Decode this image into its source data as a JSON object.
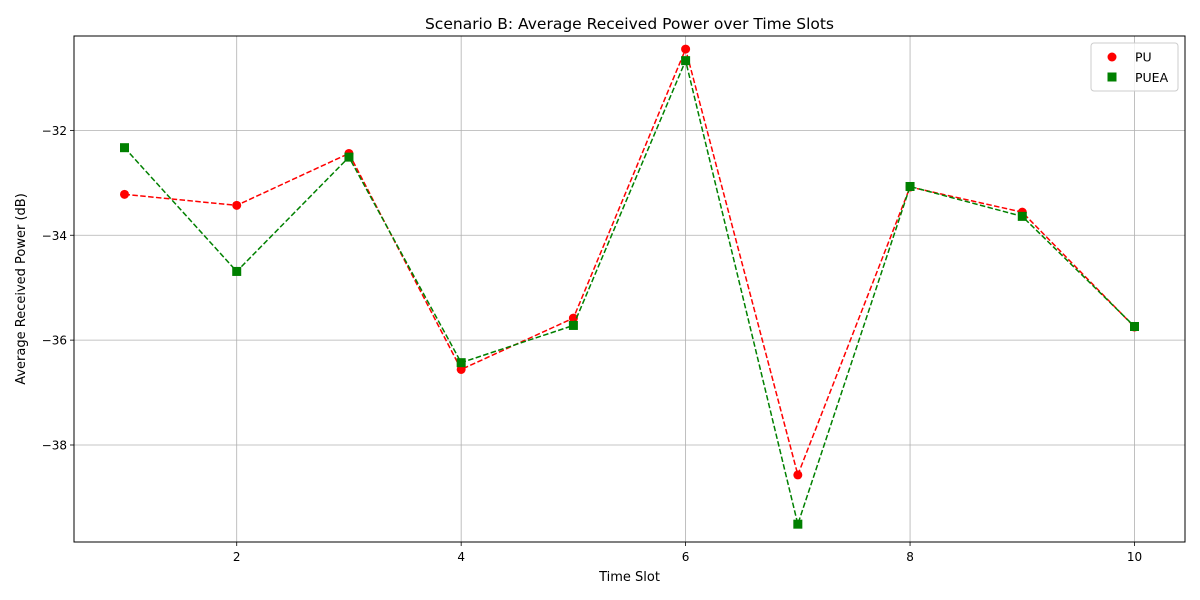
{
  "chart_data": {
    "type": "line",
    "title": "Scenario B: Average Received Power over Time Slots",
    "xlabel": "Time Slot",
    "ylabel": "Average Received Power (dB)",
    "xlim": [
      0.55,
      10.45
    ],
    "ylim": [
      -39.85,
      -30.2
    ],
    "xticks": [
      2,
      4,
      6,
      8,
      10
    ],
    "yticks": [
      -38,
      -36,
      -34,
      -32
    ],
    "xtick_labels": [
      "2",
      "4",
      "6",
      "8",
      "10"
    ],
    "ytick_labels": [
      "−38",
      "−36",
      "−34",
      "−32"
    ],
    "grid": true,
    "legend_position": "top-right",
    "x": [
      1,
      2,
      3,
      4,
      5,
      6,
      7,
      8,
      9,
      10
    ],
    "series": [
      {
        "name": "PU",
        "color": "#ff0000",
        "marker": "circle",
        "line_style": "dashed",
        "values": [
          -33.22,
          -33.43,
          -32.44,
          -36.56,
          -35.58,
          -30.45,
          -38.57,
          -33.08,
          -33.56,
          -35.75
        ]
      },
      {
        "name": "PUEA",
        "color": "#008000",
        "marker": "square",
        "line_style": "dashed",
        "values": [
          -32.33,
          -34.69,
          -32.51,
          -36.43,
          -35.72,
          -30.67,
          -39.51,
          -33.07,
          -33.64,
          -35.74
        ]
      }
    ]
  }
}
